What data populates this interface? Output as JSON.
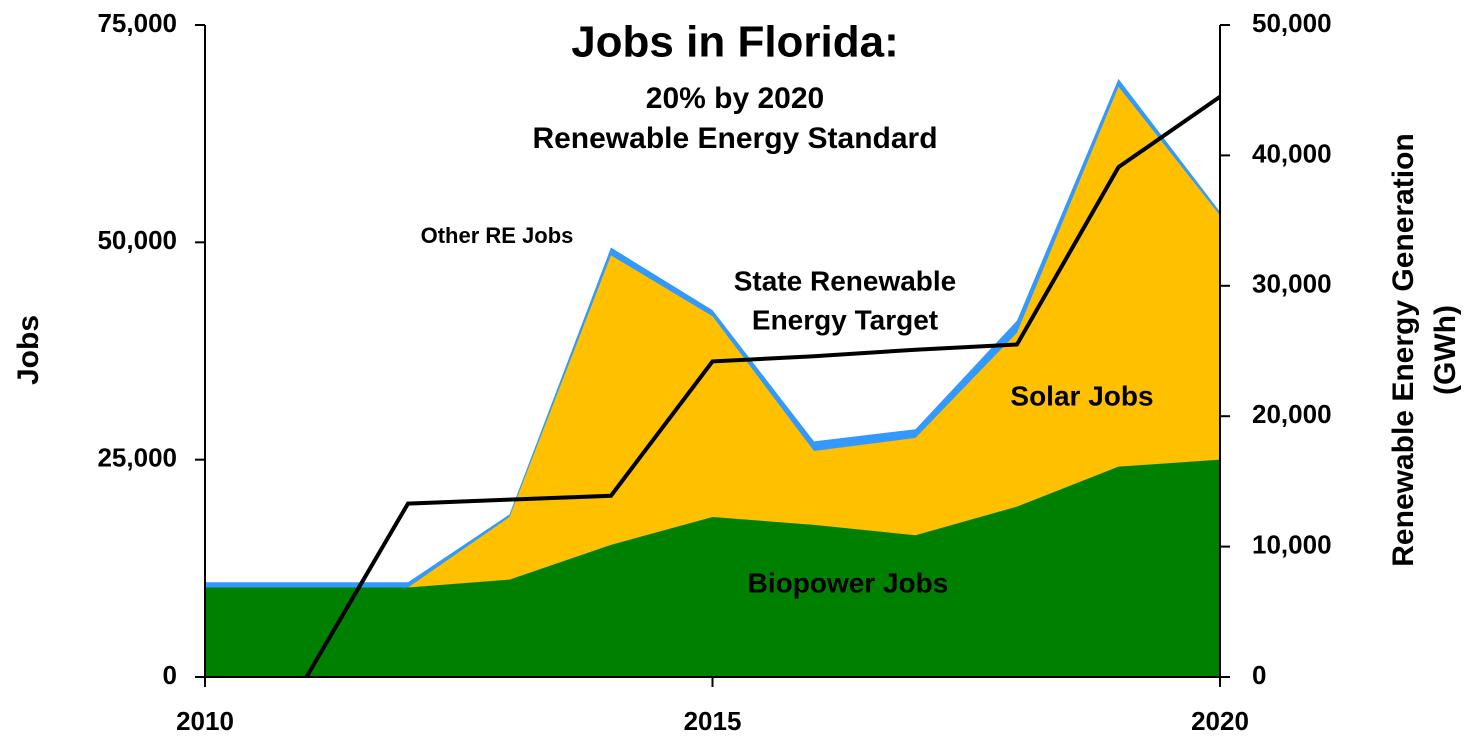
{
  "chart_data": {
    "type": "area",
    "stacked": true,
    "title": "Jobs in Florida:",
    "subtitle": [
      "20% by 2020",
      "Renewable Energy Standard"
    ],
    "ylabel": "Jobs",
    "y2label": [
      "Renewable Energy Generation",
      "(GWh)"
    ],
    "x": [
      2010,
      2011,
      2012,
      2013,
      2014,
      2015,
      2016,
      2017,
      2018,
      2019,
      2020
    ],
    "xlim": [
      2010,
      2020
    ],
    "xticks": [
      2010,
      2015,
      2020
    ],
    "ylim": [
      0,
      75000
    ],
    "yticks": [
      0,
      {
        "value": 25000,
        "label": "25,000"
      },
      {
        "value": 50000,
        "label": "50,000"
      },
      {
        "value": 75000,
        "label": "75,000"
      }
    ],
    "y2lim": [
      0,
      50000
    ],
    "y2ticks": [
      0,
      {
        "value": 10000,
        "label": "10,000"
      },
      {
        "value": 20000,
        "label": "20,000"
      },
      {
        "value": 30000,
        "label": "30,000"
      },
      {
        "value": 40000,
        "label": "40,000"
      },
      {
        "value": 50000,
        "label": "50,000"
      }
    ],
    "series": [
      {
        "name": "Biopower Jobs",
        "color": "#008000",
        "values": [
          10300,
          10300,
          10300,
          11200,
          15200,
          18400,
          17500,
          16300,
          19600,
          24200,
          25000
        ]
      },
      {
        "name": "Solar Jobs",
        "color": "#ffc000",
        "values": [
          0,
          0,
          0,
          7200,
          33300,
          23100,
          8500,
          11200,
          20000,
          43700,
          28100
        ]
      },
      {
        "name": "Other RE Jobs",
        "color": "#3399ff",
        "values": [
          600,
          600,
          600,
          300,
          900,
          700,
          1100,
          1000,
          1400,
          900,
          400
        ]
      },
      {
        "name": "State Renewable Energy Target",
        "type": "line",
        "axis": "y2",
        "color": "#000000",
        "values": [
          null,
          0,
          13300,
          13600,
          13900,
          24200,
          24600,
          25100,
          25500,
          39100,
          44500
        ]
      }
    ],
    "annotations": [
      "Other RE Jobs",
      [
        "State Renewable",
        "Energy Target"
      ],
      "Solar Jobs",
      "Biopower Jobs"
    ]
  }
}
